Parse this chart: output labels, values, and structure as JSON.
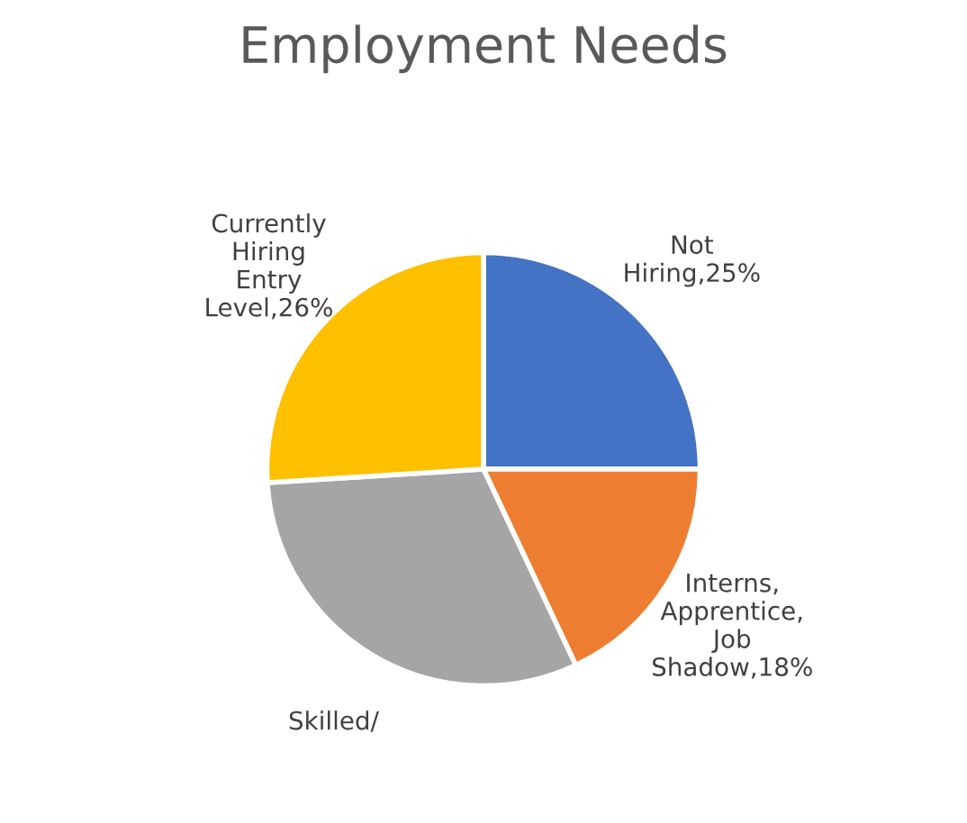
{
  "chart_data": {
    "type": "pie",
    "title": "Employment Needs",
    "categories": [
      "Not Hiring",
      "Interns, Apprentice, Job Shadow",
      "Skilled/",
      "Currently Hiring Entry Level"
    ],
    "values": [
      25,
      18,
      31,
      26
    ],
    "value_labels": [
      "25%",
      "18%",
      null,
      "26%"
    ],
    "colors": [
      "#4472c4",
      "#ed7d31",
      "#a5a5a5",
      "#ffc000"
    ],
    "legend": false
  }
}
